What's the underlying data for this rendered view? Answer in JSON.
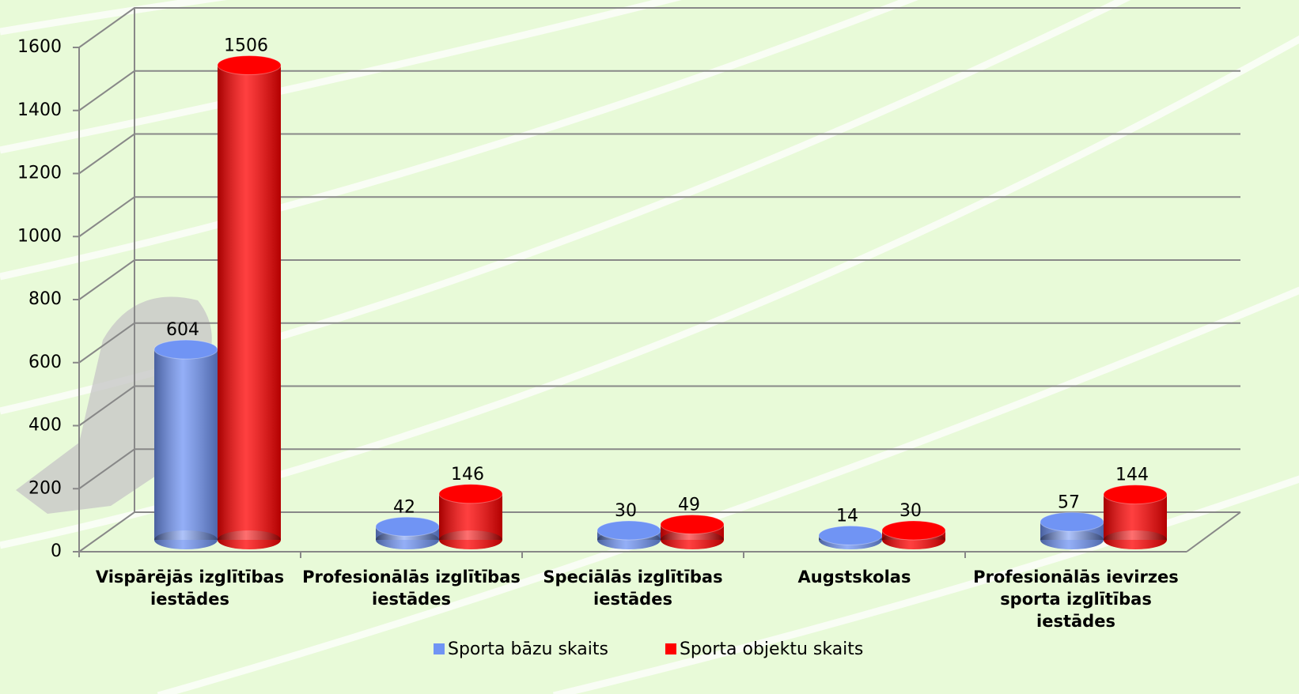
{
  "chart_data": {
    "type": "bar3d",
    "categories": [
      "Vispārējās izglītības iestādes",
      "Profesionālās izglītības iestādes",
      "Speciālās izglītības iestādes",
      "Augstskolas",
      "Profesionālās ievirzes sporta izglītības iestādes"
    ],
    "series": [
      {
        "name": "Sporta bāzu skaits",
        "color": "#7094f4",
        "values": [
          604,
          42,
          30,
          14,
          57
        ]
      },
      {
        "name": "Sporta objektu skaits",
        "color": "#ff0000",
        "values": [
          1506,
          146,
          49,
          30,
          144
        ]
      }
    ],
    "ylim": [
      0,
      1600
    ],
    "yticks": [
      0,
      200,
      400,
      600,
      800,
      1000,
      1200,
      1400,
      1600
    ],
    "grid": true,
    "legend": "bottom"
  }
}
